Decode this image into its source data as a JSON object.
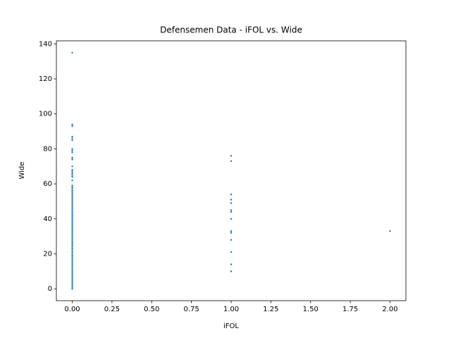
{
  "chart_data": {
    "type": "scatter",
    "title": "Defensemen Data - iFOL vs. Wide",
    "x_label": "iFOL",
    "y_label": "Wide",
    "series": [
      {
        "color": "#1f77b4",
        "x": [
          0,
          0,
          0,
          0,
          0,
          0,
          0,
          0,
          0,
          0,
          0,
          0,
          0,
          0,
          0,
          0,
          0,
          0,
          0,
          0,
          0,
          0,
          0,
          0,
          0,
          0,
          0,
          0,
          0,
          0,
          0,
          0,
          0,
          0,
          0,
          0,
          0,
          0,
          0,
          0,
          0,
          0,
          0,
          0,
          0,
          0,
          0,
          0,
          0,
          0,
          0,
          0,
          0,
          0,
          0,
          0,
          0,
          0,
          0,
          0,
          0,
          0,
          0,
          0,
          0,
          0,
          0,
          0,
          0,
          0,
          0,
          0,
          0,
          0,
          0,
          0,
          0,
          0,
          1,
          1,
          1,
          1,
          1,
          1,
          1,
          1,
          1,
          1,
          1,
          1,
          1,
          1,
          2
        ],
        "y": [
          0,
          1,
          2,
          3,
          4,
          5,
          6,
          7,
          8,
          9,
          10,
          11,
          12,
          13,
          14,
          15,
          16,
          17,
          18,
          19,
          20,
          21,
          22,
          23,
          24,
          25,
          26,
          27,
          28,
          29,
          30,
          31,
          32,
          33,
          34,
          35,
          36,
          37,
          38,
          39,
          40,
          41,
          42,
          43,
          44,
          45,
          46,
          47,
          48,
          49,
          50,
          51,
          52,
          53,
          54,
          55,
          56,
          57,
          58,
          59,
          62,
          64,
          65,
          66,
          67,
          68,
          70,
          74,
          75,
          78,
          79,
          80,
          85,
          86,
          87,
          93,
          94,
          135,
          76,
          73,
          54,
          51,
          49,
          45,
          44,
          40,
          33,
          32,
          28,
          21,
          14,
          10,
          33
        ]
      }
    ],
    "xlim": [
      -0.1,
      2.1
    ],
    "xticks": [
      {
        "value": 0,
        "label": "0.00"
      },
      {
        "value": 0.25,
        "label": "0.25"
      },
      {
        "value": 0.5,
        "label": "0.50"
      },
      {
        "value": 0.75,
        "label": "0.75"
      },
      {
        "value": 1,
        "label": "1.00"
      },
      {
        "value": 1.25,
        "label": "1.25"
      },
      {
        "value": 1.5,
        "label": "1.50"
      },
      {
        "value": 1.75,
        "label": "1.75"
      },
      {
        "value": 2,
        "label": "2.00"
      }
    ],
    "ylim": [
      -6.75,
      141.75
    ],
    "yticks": [
      0,
      20,
      40,
      60,
      80,
      100,
      120,
      140
    ]
  }
}
